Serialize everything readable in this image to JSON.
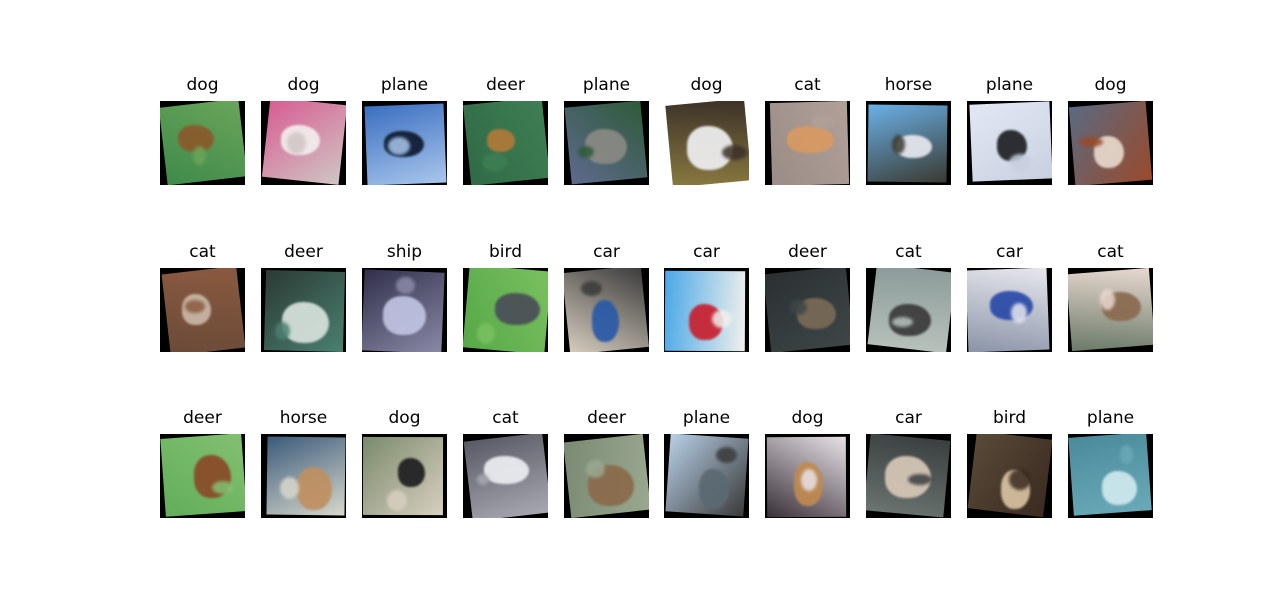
{
  "grid": {
    "rows": [
      {
        "cells": [
          {
            "label": "dog",
            "bg": "#3f8a4a",
            "fg": "#8a5a2c",
            "fg2": "#6aa55a",
            "pad": "#000000"
          },
          {
            "label": "dog",
            "bg": "#d85a90",
            "fg": "#f2eeee",
            "fg2": "#cfc6c4",
            "pad": "#000000"
          },
          {
            "label": "plane",
            "bg": "#3b6fc0",
            "fg": "#0e1b30",
            "fg2": "#a8c6ec",
            "pad": "#000000"
          },
          {
            "label": "deer",
            "bg": "#2f6a45",
            "fg": "#b07a3a",
            "fg2": "#3f7f55",
            "pad": "#000000"
          },
          {
            "label": "plane",
            "bg": "#5e6a8e",
            "fg": "#8a8a84",
            "fg2": "#2f5a3a",
            "pad": "#000000"
          },
          {
            "label": "dog",
            "bg": "#8a7a40",
            "fg": "#f0f0f2",
            "fg2": "#3a3028",
            "pad": "#ffffff"
          },
          {
            "label": "cat",
            "bg": "#9a8c86",
            "fg": "#d89a62",
            "fg2": "#b0a098",
            "pad": "#000000"
          },
          {
            "label": "horse",
            "bg": "#6ab0e8",
            "fg": "#e8e8ee",
            "fg2": "#3a3a30",
            "pad": "#000000"
          },
          {
            "label": "plane",
            "bg": "#e2e8f4",
            "fg": "#1e2024",
            "fg2": "#c8d0e0",
            "pad": "#000000"
          },
          {
            "label": "dog",
            "bg": "#5a6a82",
            "fg": "#e8d8cc",
            "fg2": "#9a4a2a",
            "pad": "#000000"
          }
        ]
      },
      {
        "cells": [
          {
            "label": "cat",
            "bg": "#6a4a38",
            "fg": "#c9b7a6",
            "fg2": "#8a5a40",
            "pad": "#000000"
          },
          {
            "label": "deer",
            "bg": "#2a3a34",
            "fg": "#d8e2dc",
            "fg2": "#4a8070",
            "pad": "#000000"
          },
          {
            "label": "ship",
            "bg": "#30304a",
            "fg": "#c0c4e2",
            "fg2": "#8a8aa8",
            "pad": "#000000"
          },
          {
            "label": "bird",
            "bg": "#56a848",
            "fg": "#4a4e58",
            "fg2": "#7ac060",
            "pad": "#000000"
          },
          {
            "label": "car",
            "bg": "#d8cec0",
            "fg": "#2a5aa8",
            "fg2": "#3a3a3a",
            "pad": "#000000"
          },
          {
            "label": "car",
            "bg": "#4aa8e8",
            "fg": "#c8202e",
            "fg2": "#f0f0ec",
            "pad": "#000000"
          },
          {
            "label": "deer",
            "bg": "#2a3032",
            "fg": "#7a6a56",
            "fg2": "#3e4648",
            "pad": "#000000"
          },
          {
            "label": "cat",
            "bg": "#8a9a98",
            "fg": "#3a3a3a",
            "fg2": "#b8c2bc",
            "pad": "#000000"
          },
          {
            "label": "car",
            "bg": "#8a94a8",
            "fg": "#2a4aa8",
            "fg2": "#e8e8ee",
            "pad": "#000000"
          },
          {
            "label": "cat",
            "bg": "#6a7a68",
            "fg": "#8a6a50",
            "fg2": "#e8d8d0",
            "pad": "#000000"
          }
        ]
      },
      {
        "cells": [
          {
            "label": "deer",
            "bg": "#62ae5a",
            "fg": "#8a4a28",
            "fg2": "#82c070",
            "pad": "#000000"
          },
          {
            "label": "horse",
            "bg": "#3a5a7a",
            "fg": "#c09060",
            "fg2": "#d8d8cc",
            "pad": "#000000"
          },
          {
            "label": "dog",
            "bg": "#7a8a6a",
            "fg": "#1e1e20",
            "fg2": "#d8cfc0",
            "pad": "#000000"
          },
          {
            "label": "cat",
            "bg": "#5a5a66",
            "fg": "#eceef2",
            "fg2": "#a8a8b2",
            "pad": "#000000"
          },
          {
            "label": "deer",
            "bg": "#7a8a72",
            "fg": "#8a6a4a",
            "fg2": "#9aa890",
            "pad": "#000000"
          },
          {
            "label": "plane",
            "bg": "#b8d0e8",
            "fg": "#5a6a72",
            "fg2": "#3a3a3a",
            "pad": "#000000"
          },
          {
            "label": "dog",
            "bg": "#3a3038",
            "fg": "#c08a50",
            "fg2": "#e8e2e8",
            "pad": "#000000"
          },
          {
            "label": "car",
            "bg": "#6a7470",
            "fg": "#d8c8b8",
            "fg2": "#3a3e40",
            "pad": "#000000"
          },
          {
            "label": "bird",
            "bg": "#5a4a38",
            "fg": "#d8c2a2",
            "fg2": "#3a2a20",
            "pad": "#000000"
          },
          {
            "label": "plane",
            "bg": "#4a8a9a",
            "fg": "#d0e8ee",
            "fg2": "#6aaab8",
            "pad": "#000000"
          }
        ]
      }
    ]
  }
}
